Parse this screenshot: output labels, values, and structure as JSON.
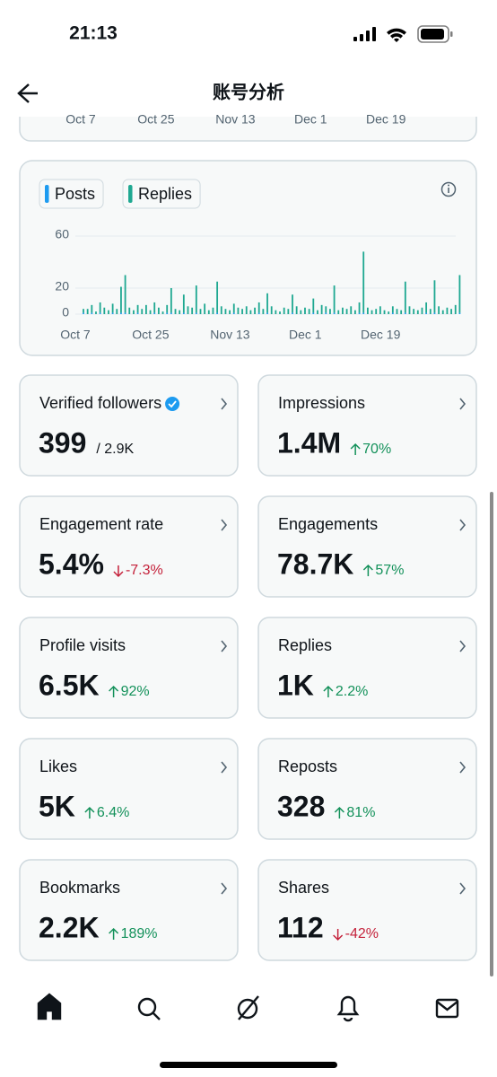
{
  "status_bar": {
    "time": "21:13"
  },
  "header": {
    "title": "账号分析"
  },
  "prev_card_labels": [
    "Oct 7",
    "Oct 25",
    "Nov 13",
    "Dec 1",
    "Dec 19"
  ],
  "chart_data": {
    "type": "bar",
    "stacked": true,
    "grid": true,
    "series": [
      {
        "name": "Posts",
        "color": "#1d9bf0",
        "values": [
          1,
          0,
          1,
          0,
          1,
          0,
          0,
          1,
          0,
          1,
          1,
          0,
          0,
          1,
          0,
          0,
          0,
          1,
          0,
          0,
          1,
          1,
          0,
          0,
          1,
          0,
          0,
          1,
          0,
          0,
          0,
          0,
          1,
          0,
          0,
          0,
          1,
          0,
          0,
          0,
          0,
          0,
          1,
          0,
          1,
          0,
          0,
          0,
          0,
          0,
          1,
          0,
          0,
          0,
          0,
          1,
          0,
          0,
          1,
          0,
          1,
          0,
          0,
          0,
          0,
          0,
          1,
          1,
          0,
          0,
          0,
          0,
          0,
          0,
          1,
          0,
          0,
          1,
          0,
          0,
          0,
          0,
          1,
          0,
          1,
          0,
          0,
          0,
          0,
          0,
          1
        ]
      },
      {
        "name": "Replies",
        "color": "#1ea891",
        "values": [
          3,
          4,
          6,
          2,
          8,
          5,
          3,
          7,
          4,
          20,
          29,
          5,
          3,
          6,
          4,
          7,
          3,
          8,
          5,
          2,
          6,
          19,
          4,
          3,
          14,
          6,
          5,
          21,
          4,
          8,
          3,
          5,
          24,
          6,
          4,
          3,
          7,
          5,
          4,
          6,
          3,
          5,
          8,
          4,
          15,
          6,
          3,
          2,
          5,
          4,
          14,
          6,
          3,
          5,
          4,
          11,
          3,
          7,
          5,
          4,
          21,
          3,
          5,
          4,
          6,
          3,
          8,
          47,
          5,
          3,
          4,
          6,
          3,
          2,
          5,
          4,
          3,
          24,
          6,
          4,
          3,
          5,
          8,
          4,
          25,
          6,
          3,
          5,
          4,
          7,
          29
        ]
      }
    ],
    "ylim": [
      0,
      60
    ],
    "yticks": [
      0,
      20,
      60
    ],
    "xlim": [
      0,
      90
    ],
    "xticks": [
      {
        "value": 0,
        "label": "Oct 7"
      },
      {
        "value": 18,
        "label": "Oct 25"
      },
      {
        "value": 37,
        "label": "Nov 13"
      },
      {
        "value": 55,
        "label": "Dec 1"
      },
      {
        "value": 73,
        "label": "Dec 19"
      }
    ]
  },
  "metrics": [
    {
      "label": "Verified followers",
      "value": "399",
      "total": "/ 2.9K",
      "verified": true
    },
    {
      "label": "Impressions",
      "value": "1.4M",
      "change": "70%",
      "trend": "up"
    },
    {
      "label": "Engagement rate",
      "value": "5.4%",
      "change": "-7.3%",
      "trend": "down"
    },
    {
      "label": "Engagements",
      "value": "78.7K",
      "change": "57%",
      "trend": "up"
    },
    {
      "label": "Profile visits",
      "value": "6.5K",
      "change": "92%",
      "trend": "up"
    },
    {
      "label": "Replies",
      "value": "1K",
      "change": "2.2%",
      "trend": "up"
    },
    {
      "label": "Likes",
      "value": "5K",
      "change": "6.4%",
      "trend": "up"
    },
    {
      "label": "Reposts",
      "value": "328",
      "change": "81%",
      "trend": "up"
    },
    {
      "label": "Bookmarks",
      "value": "2.2K",
      "change": "189%",
      "trend": "up"
    },
    {
      "label": "Shares",
      "value": "112",
      "change": "-42%",
      "trend": "down"
    }
  ]
}
